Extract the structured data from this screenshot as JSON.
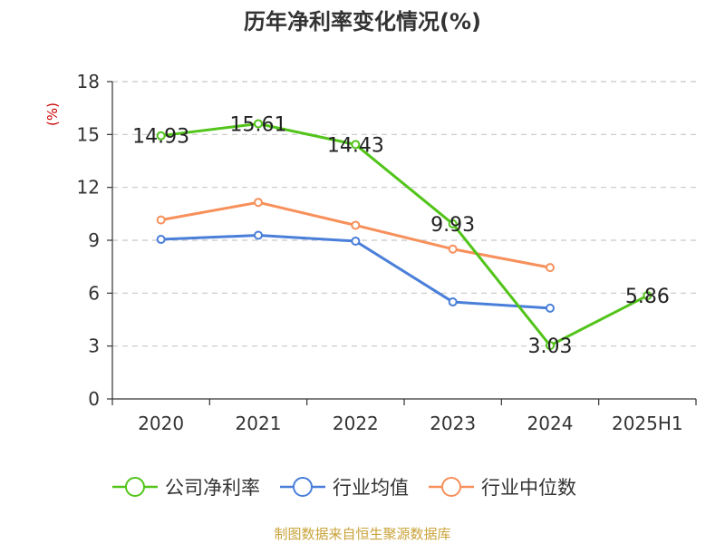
{
  "chart_data": {
    "type": "line",
    "title": "历年净利率变化情况(%)",
    "ylabel": "(%)",
    "xlabel": "",
    "categories": [
      "2020",
      "2021",
      "2022",
      "2023",
      "2024",
      "2025H1"
    ],
    "ylim": [
      0,
      18
    ],
    "yticks": [
      0,
      3,
      6,
      9,
      12,
      15,
      18
    ],
    "grid": true,
    "legend_position": "bottom",
    "series": [
      {
        "name": "公司净利率",
        "color": "#52c41a",
        "values": [
          14.93,
          15.61,
          14.43,
          9.93,
          3.03,
          5.86
        ],
        "labels": [
          "14.93",
          "15.61",
          "14.43",
          "9.93",
          "3.03",
          "5.86"
        ]
      },
      {
        "name": "行业均值",
        "color": "#4a7fd9",
        "values": [
          9.05,
          9.28,
          8.95,
          5.5,
          5.15,
          null
        ]
      },
      {
        "name": "行业中位数",
        "color": "#f7905a",
        "values": [
          10.15,
          11.15,
          9.85,
          8.5,
          7.45,
          null
        ]
      }
    ]
  },
  "source": "制图数据来自恒生聚源数据库"
}
